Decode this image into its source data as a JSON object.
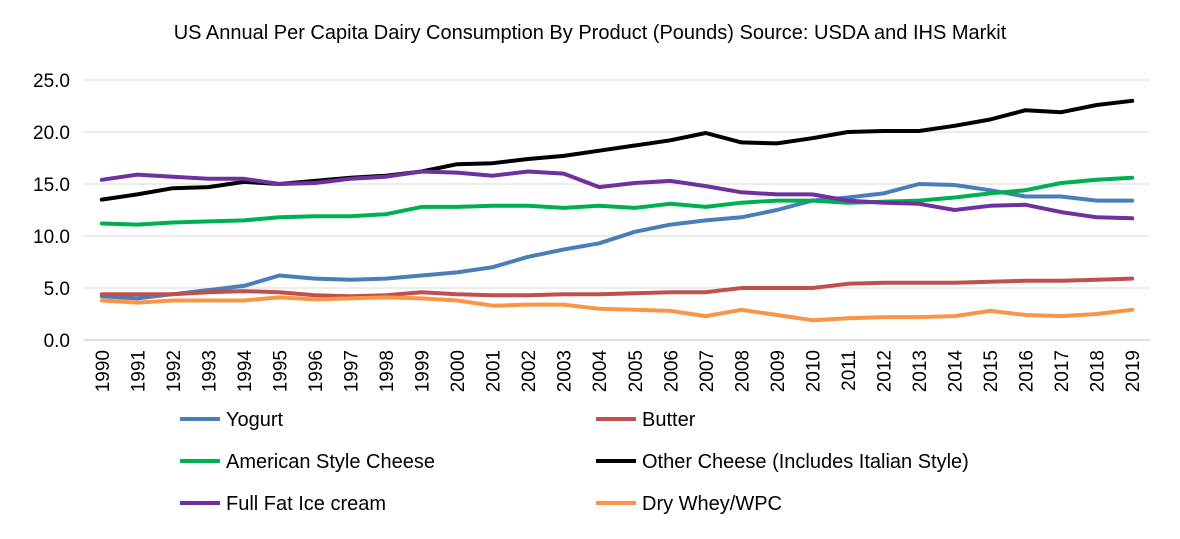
{
  "chart_data": {
    "type": "line",
    "title": "US Annual Per Capita Dairy Consumption By Product (Pounds) Source: USDA and IHS Markit",
    "xlabel": "",
    "ylabel": "",
    "ylim": [
      0,
      25
    ],
    "yticks": [
      "0.0",
      "5.0",
      "10.0",
      "15.0",
      "20.0",
      "25.0"
    ],
    "grid": true,
    "legend": "bottom",
    "categories": [
      "1990",
      "1991",
      "1992",
      "1993",
      "1994",
      "1995",
      "1996",
      "1997",
      "1998",
      "1999",
      "2000",
      "2001",
      "2002",
      "2003",
      "2004",
      "2005",
      "2006",
      "2007",
      "2008",
      "2009",
      "2010",
      "2011",
      "2012",
      "2013",
      "2014",
      "2015",
      "2016",
      "2017",
      "2018",
      "2019"
    ],
    "series": [
      {
        "name": "Yogurt",
        "color": "#4a7ebb",
        "values": [
          4.2,
          4.0,
          4.4,
          4.8,
          5.2,
          6.2,
          5.9,
          5.8,
          5.9,
          6.2,
          6.5,
          7.0,
          8.0,
          8.7,
          9.3,
          10.4,
          11.1,
          11.5,
          11.8,
          12.5,
          13.4,
          13.7,
          14.1,
          15.0,
          14.9,
          14.4,
          13.8,
          13.8,
          13.4,
          13.4
        ]
      },
      {
        "name": "Butter",
        "color": "#c0504d",
        "values": [
          4.4,
          4.4,
          4.4,
          4.6,
          4.7,
          4.6,
          4.3,
          4.2,
          4.3,
          4.6,
          4.4,
          4.3,
          4.3,
          4.4,
          4.4,
          4.5,
          4.6,
          4.6,
          5.0,
          5.0,
          5.0,
          5.4,
          5.5,
          5.5,
          5.5,
          5.6,
          5.7,
          5.7,
          5.8,
          5.9
        ]
      },
      {
        "name": "American Style Cheese",
        "color": "#00b050",
        "values": [
          11.2,
          11.1,
          11.3,
          11.4,
          11.5,
          11.8,
          11.9,
          11.9,
          12.1,
          12.8,
          12.8,
          12.9,
          12.9,
          12.7,
          12.9,
          12.7,
          13.1,
          12.8,
          13.2,
          13.4,
          13.4,
          13.2,
          13.3,
          13.4,
          13.7,
          14.1,
          14.4,
          15.1,
          15.4,
          15.6
        ]
      },
      {
        "name": "Other Cheese (Includes Italian Style)",
        "color": "#000000",
        "values": [
          13.5,
          14.0,
          14.6,
          14.7,
          15.2,
          15.0,
          15.3,
          15.6,
          15.8,
          16.2,
          16.9,
          17.0,
          17.4,
          17.7,
          18.2,
          18.7,
          19.2,
          19.9,
          19.0,
          18.9,
          19.4,
          20.0,
          20.1,
          20.1,
          20.6,
          21.2,
          22.1,
          21.9,
          22.6,
          23.0
        ]
      },
      {
        "name": "Full Fat Ice cream",
        "color": "#7030a0",
        "values": [
          15.4,
          15.9,
          15.7,
          15.5,
          15.5,
          15.0,
          15.1,
          15.5,
          15.7,
          16.2,
          16.1,
          15.8,
          16.2,
          16.0,
          14.7,
          15.1,
          15.3,
          14.8,
          14.2,
          14.0,
          14.0,
          13.4,
          13.2,
          13.1,
          12.5,
          12.9,
          13.0,
          12.3,
          11.8,
          11.7
        ]
      },
      {
        "name": "Dry Whey/WPC",
        "color": "#f79646",
        "values": [
          3.8,
          3.6,
          3.8,
          3.8,
          3.8,
          4.1,
          3.9,
          4.0,
          4.1,
          4.0,
          3.8,
          3.3,
          3.4,
          3.4,
          3.0,
          2.9,
          2.8,
          2.3,
          2.9,
          2.4,
          1.9,
          2.1,
          2.2,
          2.2,
          2.3,
          2.8,
          2.4,
          2.3,
          2.5,
          2.9
        ]
      }
    ]
  }
}
